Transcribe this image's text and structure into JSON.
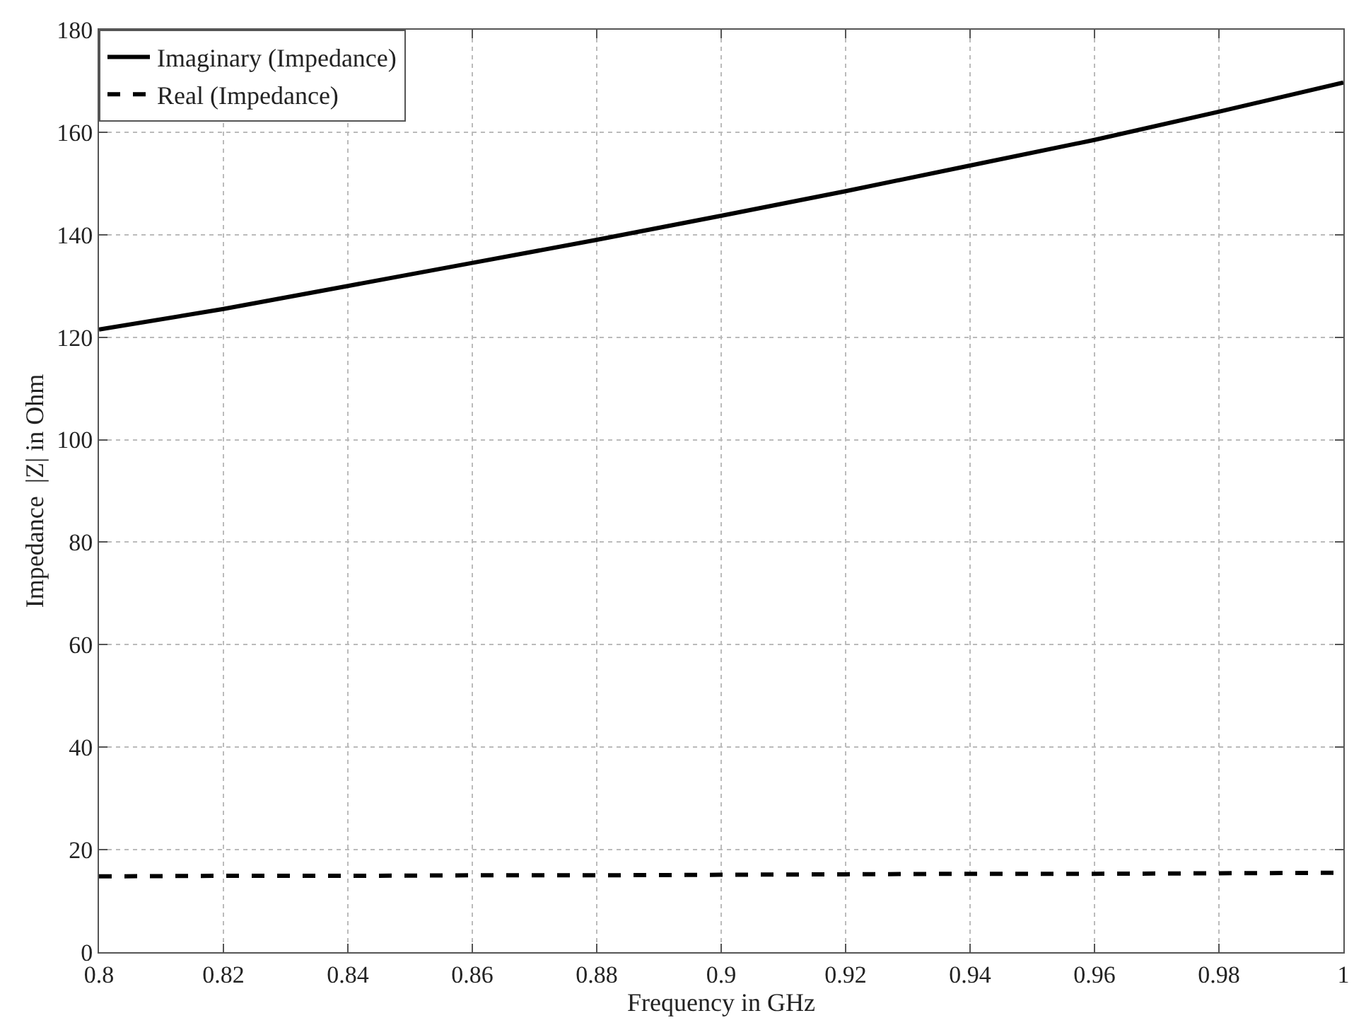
{
  "chart_data": {
    "type": "line",
    "xlabel": "Frequency in GHz",
    "ylabel": "Impedance  |Z| in Ohm",
    "x": [
      0.8,
      0.82,
      0.84,
      0.86,
      0.88,
      0.9,
      0.92,
      0.94,
      0.96,
      0.98,
      1.0
    ],
    "series": [
      {
        "name": "Imaginary (Impedance)",
        "color": "#000000",
        "line_style": "solid",
        "values": [
          121.5,
          125.5,
          130,
          134.5,
          139,
          143.7,
          148.5,
          153.5,
          158.5,
          164,
          169.7
        ]
      },
      {
        "name": "Real (Impedance)",
        "color": "#000000",
        "line_style": "dashed",
        "values": [
          14.8,
          14.9,
          14.9,
          15,
          15,
          15.1,
          15.2,
          15.3,
          15.3,
          15.4,
          15.5
        ]
      }
    ],
    "xlim": [
      0.8,
      1
    ],
    "xticks": [
      0.8,
      0.82,
      0.84,
      0.86,
      0.88,
      0.9,
      0.92,
      0.94,
      0.96,
      0.98,
      1
    ],
    "ylim": [
      0,
      180
    ],
    "yticks": [
      0,
      20,
      40,
      60,
      80,
      100,
      120,
      140,
      160,
      180
    ],
    "grid": true,
    "legend": "top left"
  }
}
